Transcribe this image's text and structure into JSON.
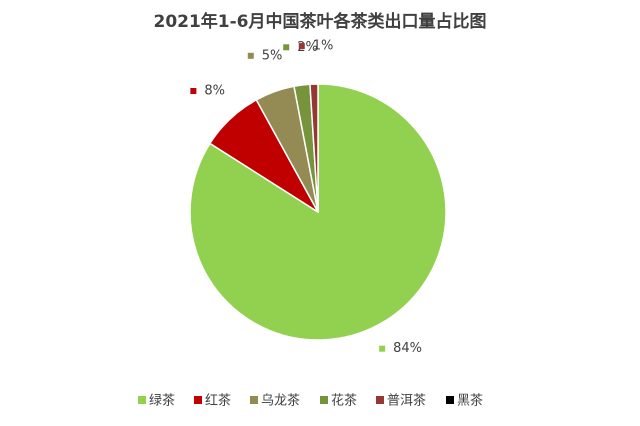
{
  "chart_data": {
    "type": "pie",
    "title": "2021年1-6月中国茶叶各茶类出口量占比图",
    "categories": [
      "绿茶",
      "红茶",
      "乌龙茶",
      "花茶",
      "普洱茶",
      "黑茶"
    ],
    "values": [
      84,
      8,
      5,
      2,
      1,
      0
    ],
    "value_labels": [
      "84%",
      "8%",
      "5%",
      "2%",
      "1%",
      null
    ],
    "colors": [
      "#92d050",
      "#c00000",
      "#948a54",
      "#77933c",
      "#953735",
      "#000000"
    ],
    "legend": "bottom"
  }
}
